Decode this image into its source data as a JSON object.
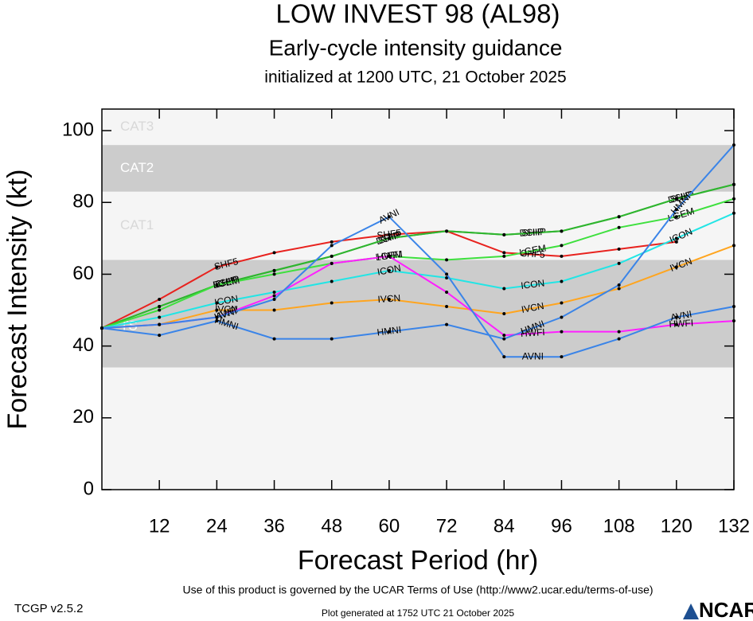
{
  "chart_data": {
    "type": "line",
    "title": "LOW INVEST 98 (AL98)",
    "subtitle": "Early-cycle intensity guidance",
    "caption": "initialized at 1200 UTC, 21 October 2025",
    "x_label": "Forecast Period (hr)",
    "y_label": "Forecast Intensity (kt)",
    "xlim": [
      0,
      132
    ],
    "xticks": [
      12,
      24,
      36,
      48,
      60,
      72,
      84,
      96,
      108,
      120,
      132
    ],
    "ylim": [
      0,
      106
    ],
    "yticks": [
      0,
      20,
      40,
      60,
      80,
      100
    ],
    "bands": [
      {
        "label": "TS",
        "from": 34,
        "to": 64,
        "color": "#cccccc",
        "label_color": "#ffffff"
      },
      {
        "label": "CAT1",
        "from": 64,
        "to": 83,
        "color": "#f5f5f5",
        "label_color": "#d8d8d8"
      },
      {
        "label": "CAT2",
        "from": 83,
        "to": 96,
        "color": "#cccccc",
        "label_color": "#ffffff"
      },
      {
        "label": "CAT3",
        "from": 96,
        "to": 106,
        "color": "#f5f5f5",
        "label_color": "#d8d8d8"
      }
    ],
    "x": [
      0,
      12,
      24,
      36,
      48,
      60,
      72,
      84,
      96,
      108,
      120,
      132
    ],
    "series": [
      {
        "name": "SHF5",
        "color": "#e8221e",
        "values": [
          45,
          53,
          62,
          66,
          69,
          71,
          72,
          66,
          65,
          67,
          69,
          null
        ]
      },
      {
        "name": "DSHP",
        "color": "#2fb52f",
        "values": [
          45,
          51,
          57,
          61,
          65,
          70,
          72,
          71,
          72,
          76,
          81,
          85
        ]
      },
      {
        "name": "SHIP",
        "color": "#2fb52f",
        "values": [
          45,
          51,
          57,
          61,
          65,
          70,
          72,
          71,
          72,
          76,
          81,
          85
        ]
      },
      {
        "name": "LGEM",
        "color": "#3ee03e",
        "values": [
          45,
          50,
          57,
          60,
          63,
          65,
          64,
          65,
          68,
          73,
          76,
          81
        ]
      },
      {
        "name": "ICON",
        "color": "#22e5e5",
        "values": [
          45,
          48,
          52,
          55,
          58,
          61,
          59,
          56,
          58,
          63,
          70,
          77
        ]
      },
      {
        "name": "IVCN",
        "color": "#ffa51f",
        "values": [
          45,
          46,
          50,
          50,
          52,
          53,
          51,
          49,
          52,
          56,
          62,
          68
        ]
      },
      {
        "name": "HWFI",
        "color": "#ff1fff",
        "values": [
          45,
          46,
          48,
          54,
          63,
          65,
          55,
          43,
          44,
          44,
          46,
          47
        ]
      },
      {
        "name": "HMNI",
        "color": "#3a84e8",
        "values": [
          45,
          43,
          47,
          42,
          42,
          44,
          46,
          42,
          48,
          57,
          78,
          96
        ]
      },
      {
        "name": "AVNI",
        "color": "#3a84e8",
        "values": [
          45,
          46,
          48,
          53,
          68,
          76,
          60,
          37,
          37,
          42,
          48,
          51
        ]
      }
    ],
    "terms": "Use of this product is governed by the UCAR Terms of Use (http://www2.ucar.edu/terms-of-use)",
    "version": "TCGP v2.5.2",
    "generated": "Plot generated at 1752 UTC   21 October 2025",
    "logo": "NCAR"
  }
}
